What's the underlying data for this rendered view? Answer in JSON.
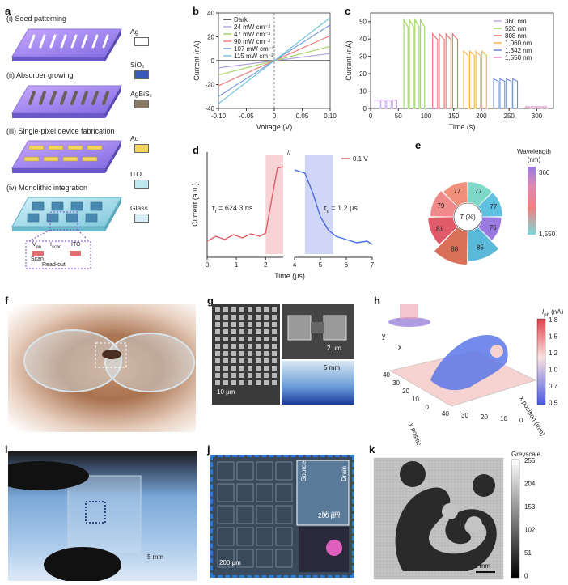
{
  "panels": {
    "a": "a",
    "b": "b",
    "c": "c",
    "d": "d",
    "e": "e",
    "f": "f",
    "g": "g",
    "h": "h",
    "i": "i",
    "j": "j",
    "k": "k"
  },
  "panel_a": {
    "steps": [
      "(i)   Seed patterning",
      "(ii)  Absorber growing",
      "(iii) Single-pixel device fabrication",
      "(iv) Monolithic integration"
    ],
    "materials": [
      {
        "label": "Ag",
        "color": "#ffffff"
      },
      {
        "label": "SiO₂",
        "color": "#3a5ab8"
      },
      {
        "label": "AgBiS₂",
        "color": "#8a7a66"
      },
      {
        "label": "Au",
        "color": "#f2d55a"
      },
      {
        "label": "ITO",
        "color": "#bfe8ef"
      },
      {
        "label": "Glass",
        "color": "#d8eef5"
      }
    ],
    "inset": {
      "v_label": "V",
      "v_sub": "an",
      "i_label": "I",
      "i_sub": "scan",
      "ito": "ITO",
      "scan": "Scan",
      "readout": "Read-out"
    }
  },
  "chart_data": [
    {
      "panel": "b",
      "type": "line",
      "xlabel": "Voltage (V)",
      "ylabel": "Current (nA)",
      "xlim": [
        -0.1,
        0.1
      ],
      "ylim": [
        -40,
        40
      ],
      "xticks": [
        "-0.10",
        "-0.05",
        "0",
        "0.05",
        "0.10"
      ],
      "yticks": [
        "40",
        "20",
        "0",
        "-20",
        "-40"
      ],
      "series": [
        {
          "name": "Dark",
          "slope": 0,
          "color": "#333333"
        },
        {
          "name": "24 mW cm⁻²",
          "slope": 60,
          "color": "#b7a4e0"
        },
        {
          "name": "47 mW cm⁻²",
          "slope": 120,
          "color": "#a8d468"
        },
        {
          "name": "90 mW cm⁻²",
          "slope": 210,
          "color": "#f08080"
        },
        {
          "name": "107 mW cm⁻²",
          "slope": 300,
          "color": "#7a9ae0"
        },
        {
          "name": "115 mW cm⁻²",
          "slope": 360,
          "color": "#6ec6d8"
        }
      ]
    },
    {
      "panel": "c",
      "type": "line",
      "xlabel": "Time (s)",
      "ylabel": "Current (nA)",
      "xlim": [
        0,
        330
      ],
      "ylim": [
        0,
        55
      ],
      "xticks": [
        "0",
        "50",
        "100",
        "150",
        "200",
        "250",
        "300"
      ],
      "yticks": [
        "50",
        "40",
        "30",
        "20",
        "10",
        "0"
      ],
      "series": [
        {
          "name": "360 nm",
          "start": 8,
          "end": 50,
          "level": 5,
          "color": "#c9a7f0"
        },
        {
          "name": "520 nm",
          "start": 60,
          "end": 100,
          "level": 51,
          "color": "#9ad45a"
        },
        {
          "name": "808 nm",
          "start": 112,
          "end": 160,
          "level": 43,
          "color": "#f06a6a"
        },
        {
          "name": "1,060 nm",
          "start": 168,
          "end": 212,
          "level": 33,
          "color": "#f2b54a"
        },
        {
          "name": "1,342 nm",
          "start": 222,
          "end": 268,
          "level": 17,
          "color": "#6a86e8"
        },
        {
          "name": "1,550 nm",
          "start": 280,
          "end": 320,
          "level": 1,
          "color": "#e892c9"
        }
      ]
    },
    {
      "panel": "d",
      "type": "line",
      "xlabel": "Time (μs)",
      "ylabel": "Current (a.u.)",
      "xticks": [
        "0",
        "1",
        "2",
        "4",
        "5",
        "6",
        "7"
      ],
      "legend": "0.1 V",
      "annotations": [
        {
          "label": "τ",
          "sub": "r",
          "value": " = 624.3 ns"
        },
        {
          "label": "τ",
          "sub": "d",
          "value": " = 1.2 μs"
        }
      ]
    },
    {
      "panel": "e",
      "type": "pie",
      "center_label": "T",
      "center_unit": " (%)",
      "values": [
        77,
        77,
        76,
        85,
        88,
        81,
        79,
        77
      ],
      "colorbar": {
        "title": "Wavelength",
        "unit": "(nm)",
        "max": "360",
        "min": "1,550"
      }
    },
    {
      "panel": "h",
      "type": "heatmap",
      "xlabel": "x position (mm)",
      "ylabel": "y position (mm)",
      "xticks": [
        "40",
        "30",
        "20",
        "10",
        "0"
      ],
      "yticks": [
        "40",
        "30",
        "20",
        "10",
        "0"
      ],
      "axis_x": "x",
      "axis_y": "y",
      "colorbar": {
        "title": "I",
        "sub": "ph",
        "unit": " (nA)",
        "ticks": [
          "1.8",
          "1.5",
          "1.2",
          "1.0",
          "0.7",
          "0.5"
        ]
      }
    },
    {
      "panel": "k",
      "type": "heatmap",
      "colorbar": {
        "title": "Greyscale",
        "ticks": [
          "255",
          "204",
          "153",
          "102",
          "51",
          "0"
        ]
      },
      "scalebar": "1 mm"
    }
  ],
  "scalebars": {
    "g_main": "10 μm",
    "g_sem": "2 μm",
    "g_photo": "5 mm",
    "i": "5 mm",
    "j_main": "200 μm",
    "j_inset": "50 μm"
  },
  "labels_j": {
    "source": "Source",
    "drain": "Drain"
  }
}
